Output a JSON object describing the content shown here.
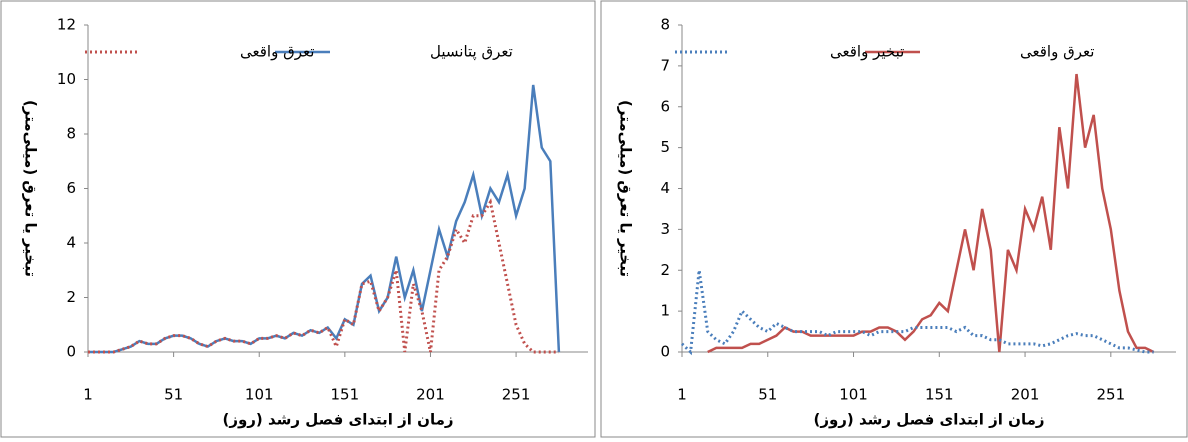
{
  "chart_data": [
    {
      "type": "line",
      "x": [
        1,
        6,
        11,
        16,
        21,
        26,
        31,
        36,
        41,
        46,
        51,
        56,
        61,
        66,
        71,
        76,
        81,
        86,
        91,
        96,
        101,
        106,
        111,
        116,
        121,
        126,
        131,
        136,
        141,
        146,
        151,
        156,
        161,
        166,
        171,
        176,
        181,
        186,
        191,
        196,
        201,
        206,
        211,
        216,
        221,
        226,
        231,
        236,
        241,
        246,
        251,
        256,
        261,
        266,
        271,
        276
      ],
      "series": [
        {
          "name": "تعرق پتانسیل",
          "color": "#4a7ebb",
          "style": "solid",
          "values": [
            0,
            0,
            0,
            0,
            0.1,
            0.2,
            0.4,
            0.3,
            0.3,
            0.5,
            0.6,
            0.6,
            0.5,
            0.3,
            0.2,
            0.4,
            0.5,
            0.4,
            0.4,
            0.3,
            0.5,
            0.5,
            0.6,
            0.5,
            0.7,
            0.6,
            0.8,
            0.7,
            0.9,
            0.5,
            1.2,
            1.0,
            2.5,
            2.8,
            1.5,
            2.0,
            3.5,
            2.0,
            3.0,
            1.5,
            3.0,
            4.5,
            3.5,
            4.8,
            5.5,
            6.5,
            5.0,
            6.0,
            5.5,
            6.5,
            5.0,
            6.0,
            9.8,
            7.5,
            7.0,
            0
          ]
        },
        {
          "name": "تعرق واقعی",
          "color": "#c0504d",
          "style": "dotted",
          "values": [
            0,
            0,
            0,
            0,
            0.1,
            0.2,
            0.4,
            0.3,
            0.3,
            0.5,
            0.6,
            0.6,
            0.5,
            0.3,
            0.2,
            0.4,
            0.5,
            0.4,
            0.4,
            0.3,
            0.5,
            0.5,
            0.6,
            0.5,
            0.7,
            0.6,
            0.8,
            0.7,
            0.9,
            0.2,
            1.2,
            1.0,
            2.5,
            2.6,
            1.5,
            2.0,
            3.0,
            0,
            2.5,
            1.5,
            0,
            3.0,
            3.5,
            4.5,
            4.0,
            5.0,
            5.0,
            5.5,
            4.0,
            2.5,
            1.0,
            0.3,
            0,
            0,
            0,
            0
          ]
        }
      ],
      "xlim": [
        1,
        293
      ],
      "xticks": [
        1,
        51,
        101,
        151,
        201,
        251
      ],
      "ylim": [
        0,
        12
      ],
      "yticks": [
        0,
        2,
        4,
        6,
        8,
        10,
        12
      ],
      "x_label": "زمان از ابتدای فصل رشد (روز)",
      "y_label": "تبخیر یا تعرق (میلی‌متر)"
    },
    {
      "type": "line",
      "x": [
        1,
        6,
        11,
        16,
        21,
        26,
        31,
        36,
        41,
        46,
        51,
        56,
        61,
        66,
        71,
        76,
        81,
        86,
        91,
        96,
        101,
        106,
        111,
        116,
        121,
        126,
        131,
        136,
        141,
        146,
        151,
        156,
        161,
        166,
        171,
        176,
        181,
        186,
        191,
        196,
        201,
        206,
        211,
        216,
        221,
        226,
        231,
        236,
        241,
        246,
        251,
        256,
        261,
        266,
        271,
        276
      ],
      "series": [
        {
          "name": "تعرق واقعی",
          "color": "#c0504d",
          "style": "solid",
          "values": [
            null,
            null,
            null,
            0,
            0.1,
            0.1,
            0.1,
            0.1,
            0.2,
            0.2,
            0.3,
            0.4,
            0.6,
            0.5,
            0.5,
            0.4,
            0.4,
            0.4,
            0.4,
            0.4,
            0.4,
            0.5,
            0.5,
            0.6,
            0.6,
            0.5,
            0.3,
            0.5,
            0.8,
            0.9,
            1.2,
            1.0,
            2.0,
            3.0,
            2.0,
            3.5,
            2.5,
            0,
            2.5,
            2.0,
            3.5,
            3.0,
            3.8,
            2.5,
            5.5,
            4.0,
            6.8,
            5.0,
            5.8,
            4.0,
            3.0,
            1.5,
            0.5,
            0.1,
            0.1,
            0
          ]
        },
        {
          "name": "تبخیر واقعی",
          "color": "#4a7ebb",
          "style": "dotted",
          "values": [
            0.2,
            0,
            2.0,
            0.5,
            0.3,
            0.2,
            0.5,
            1.0,
            0.8,
            0.6,
            0.5,
            0.7,
            0.6,
            0.5,
            0.5,
            0.5,
            0.5,
            0.4,
            0.5,
            0.5,
            0.5,
            0.5,
            0.4,
            0.5,
            0.5,
            0.5,
            0.5,
            0.6,
            0.6,
            0.6,
            0.6,
            0.6,
            0.5,
            0.6,
            0.4,
            0.4,
            0.3,
            0.3,
            0.2,
            0.2,
            0.2,
            0.2,
            0.15,
            0.2,
            0.3,
            0.4,
            0.45,
            0.4,
            0.4,
            0.3,
            0.2,
            0.1,
            0.1,
            0.05,
            0,
            0
          ]
        }
      ],
      "xlim": [
        1,
        289
      ],
      "xticks": [
        1,
        51,
        101,
        151,
        201,
        251
      ],
      "ylim": [
        0,
        8
      ],
      "yticks": [
        0,
        1,
        2,
        3,
        4,
        5,
        6,
        7,
        8
      ],
      "x_label": "زمان از ابتدای فصل رشد (روز)",
      "y_label": "تبخیر یا تعرق (میلی‌متر)"
    }
  ]
}
